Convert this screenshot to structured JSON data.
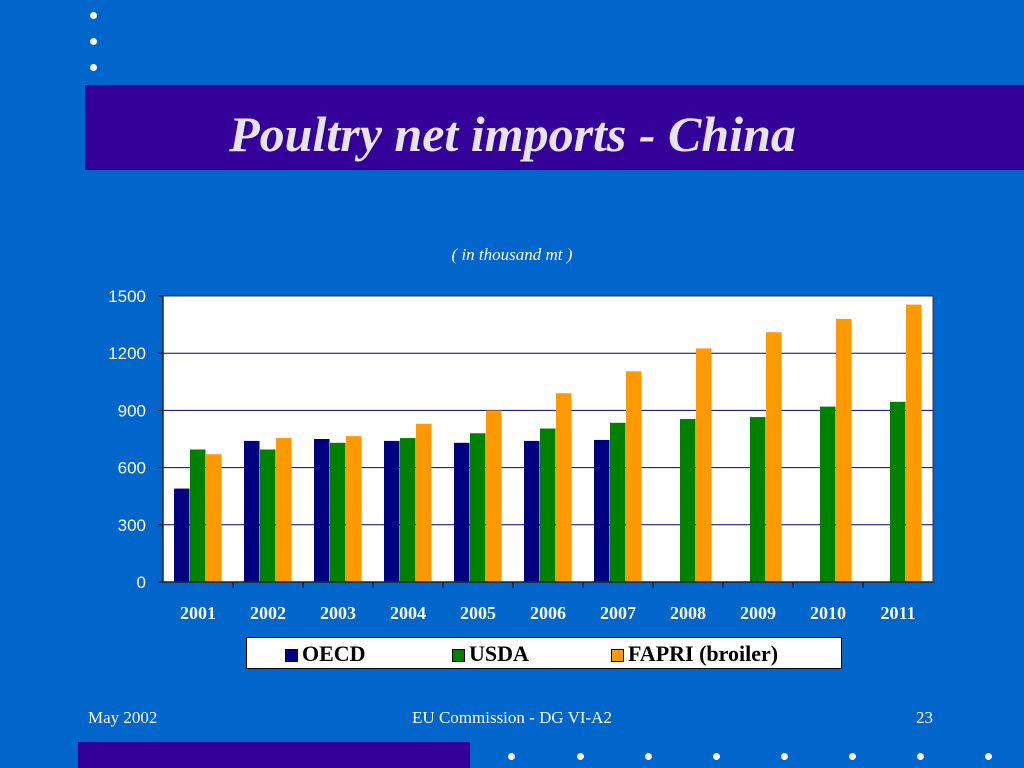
{
  "slide": {
    "title": "Poultry net imports - China",
    "subtitle": "( in thousand mt )",
    "footer_left": "May 2002",
    "footer_center": "EU Commission - DG VI-A2",
    "page_number": "23"
  },
  "colors": {
    "background": "#0066cc",
    "band": "#330099",
    "oecd": "#000080",
    "usda": "#008000",
    "fapri": "#ff9900"
  },
  "chart_data": {
    "type": "bar",
    "title": "",
    "subtitle": "( in thousand mt )",
    "categories": [
      "2001",
      "2002",
      "2003",
      "2004",
      "2005",
      "2006",
      "2007",
      "2008",
      "2009",
      "2010",
      "2011"
    ],
    "series": [
      {
        "name": "OECD",
        "color": "#000080",
        "values": [
          490,
          740,
          750,
          740,
          730,
          740,
          745,
          null,
          null,
          null,
          null
        ]
      },
      {
        "name": "USDA",
        "color": "#008000",
        "values": [
          695,
          695,
          730,
          755,
          780,
          805,
          835,
          855,
          865,
          920,
          945
        ]
      },
      {
        "name": "FAPRI (broiler)",
        "color": "#ff9900",
        "values": [
          670,
          755,
          765,
          830,
          900,
          990,
          1105,
          1225,
          1310,
          1380,
          1455
        ]
      }
    ],
    "y_ticks": [
      "0",
      "300",
      "600",
      "900",
      "1200",
      "1500"
    ],
    "ylim": [
      0,
      1500
    ],
    "grid": true,
    "legend_position": "bottom"
  }
}
